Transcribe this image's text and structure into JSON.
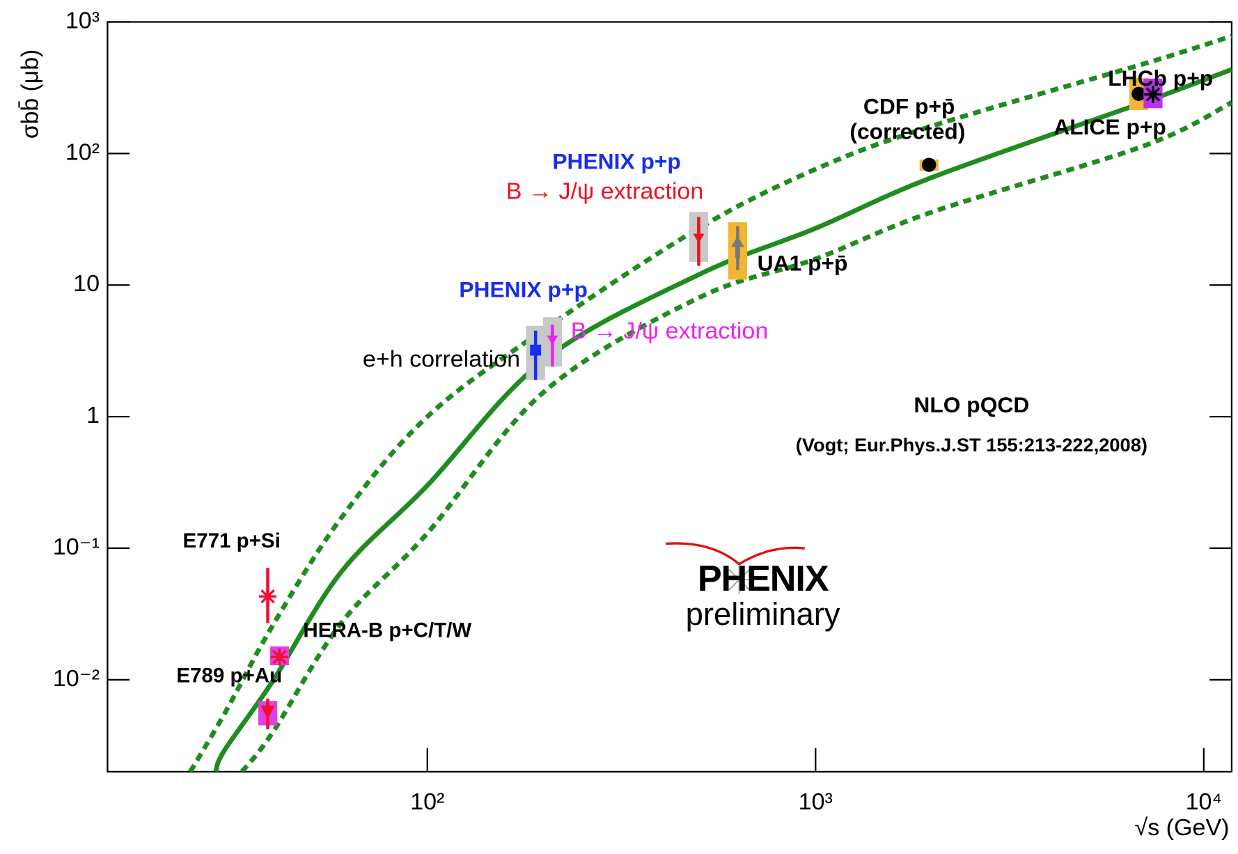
{
  "chart_data": {
    "type": "scatter",
    "xlabel": "√s (GeV)",
    "ylabel": "σbb̄ (μb)",
    "log_x": true,
    "log_y": true,
    "xlim": [
      15,
      11800
    ],
    "ylim": [
      0.002,
      1000
    ],
    "xticks": [
      {
        "value": 100,
        "label": "10²"
      },
      {
        "value": 1000,
        "label": "10³"
      },
      {
        "value": 10000,
        "label": "10⁴"
      }
    ],
    "yticks": [
      {
        "value": 0.01,
        "label": "10⁻²"
      },
      {
        "value": 0.1,
        "label": "10⁻¹"
      },
      1,
      10,
      {
        "value": 100,
        "label": "10²"
      },
      {
        "value": 1000,
        "label": "10³"
      }
    ],
    "curves": [
      {
        "style": "solid",
        "color": "#1e8c1e",
        "x": [
          28.5,
          30,
          40,
          60,
          100,
          200,
          500,
          1000,
          2000,
          7000,
          11800
        ],
        "values": [
          0.002,
          0.0029,
          0.0098,
          0.066,
          0.3,
          2.7,
          12,
          27,
          66,
          245,
          435
        ]
      },
      {
        "style": "dashed",
        "color": "#1e8c1e",
        "x": [
          24.5,
          30,
          40,
          60,
          100,
          200,
          500,
          1000,
          2000,
          7000,
          11800
        ],
        "values": [
          0.002,
          0.0055,
          0.026,
          0.17,
          1.0,
          4.6,
          27,
          76,
          162,
          480,
          780
        ]
      },
      {
        "style": "dashed",
        "color": "#1e8c1e",
        "x": [
          33.3,
          40,
          60,
          100,
          200,
          500,
          1000,
          2000,
          7000,
          11800
        ],
        "values": [
          0.002,
          0.004,
          0.027,
          0.13,
          1.55,
          8,
          15.8,
          36,
          114,
          244
        ]
      }
    ],
    "series": [
      {
        "color": "#ee1133",
        "marker": "star",
        "x": [
          38.8
        ],
        "values": [
          0.043
        ],
        "err_minus": [
          0.016
        ],
        "err_plus": [
          0.028
        ]
      },
      {
        "color": "#ee1133",
        "marker": "star",
        "box_color": "#e040e0",
        "x": [
          41.6
        ],
        "values": [
          0.0149
        ],
        "err_minus": [
          0.001
        ],
        "err_plus": [
          0.001
        ],
        "sys_minus": [
          0.002
        ],
        "sys_plus": [
          0.003
        ]
      },
      {
        "color": "#ee1133",
        "marker": "triangle-down",
        "box_color": "#e040e0",
        "x": [
          38.8
        ],
        "values": [
          0.0057
        ],
        "err_minus": [
          0.0015
        ],
        "err_plus": [
          0.0015
        ],
        "sys_minus": [
          0.0012
        ],
        "sys_plus": [
          0.0012
        ]
      },
      {
        "color": "#1133ee",
        "marker": "square",
        "box_color": "#c8c8c8",
        "x": [
          190
        ],
        "values": [
          3.2
        ],
        "err_minus": [
          1.3
        ],
        "err_plus": [
          1.3
        ],
        "sys_minus": [
          1.3
        ],
        "sys_plus": [
          1.7
        ]
      },
      {
        "color": "#ee22ee",
        "marker": "arrow-down",
        "box_color": "#c8c8c8",
        "x": [
          210
        ],
        "values": [
          3.7
        ],
        "err_minus": [
          1.3
        ],
        "err_plus": [
          1.3
        ],
        "sys_minus": [
          1.3
        ],
        "sys_plus": [
          2.0
        ]
      },
      {
        "color": "#ee1122",
        "marker": "arrow-down",
        "box_color": "#c8c8c8",
        "x": [
          500
        ],
        "values": [
          22
        ],
        "err_minus": [
          8
        ],
        "err_plus": [
          11
        ],
        "sys_minus": [
          7
        ],
        "sys_plus": [
          14
        ]
      },
      {
        "color": "#777777",
        "marker": "arrow-up",
        "box_color": "#f2b632",
        "x": [
          630
        ],
        "values": [
          19
        ],
        "err_minus": [
          6
        ],
        "err_plus": [
          9
        ],
        "sys_minus": [
          8
        ],
        "sys_plus": [
          11
        ]
      },
      {
        "color": "#000000",
        "marker": "circle",
        "box_color": "#f2b632",
        "x": [
          1960
        ],
        "values": [
          82
        ],
        "sys_minus": [
          8
        ],
        "sys_plus": [
          8
        ]
      },
      {
        "color": "#000000",
        "marker": "circle",
        "box_color": "#f2b632",
        "x": [
          6800
        ],
        "values": [
          284
        ],
        "sys_minus": [
          70
        ],
        "sys_plus": [
          90
        ]
      },
      {
        "color": "#000000",
        "marker": "star",
        "box_color": "#c030f0",
        "x": [
          7400
        ],
        "values": [
          281
        ],
        "sys_minus": [
          60
        ],
        "sys_plus": [
          90
        ]
      }
    ],
    "annotations": [
      {
        "text": "PHENIX p+p",
        "color": "#1a2ee8"
      },
      {
        "text": "B → J/ψ extraction",
        "color": "#ee1122"
      },
      {
        "text": "PHENIX p+p",
        "color": "#1a2ee8"
      },
      {
        "text": "B → J/ψ extraction",
        "color": "#ee22ee"
      },
      {
        "text": "e+h correlation",
        "color": "#000000"
      },
      {
        "text": "UA1 p+p̄",
        "color": "#000000"
      },
      {
        "text": "CDF p+p̄",
        "color": "#000000"
      },
      {
        "text": "(corrected)",
        "color": "#000000"
      },
      {
        "text": "LHCb p+p",
        "color": "#000000"
      },
      {
        "text": "ALICE p+p",
        "color": "#000000"
      },
      {
        "text": "NLO pQCD",
        "color": "#000000"
      },
      {
        "text": "(Vogt; Eur.Phys.J.ST 155:213-222,2008)",
        "color": "#000000"
      },
      {
        "text": "E771 p+Si",
        "color": "#000000"
      },
      {
        "text": "HERA-B p+C/T/W",
        "color": "#000000"
      },
      {
        "text": "E789 p+Au",
        "color": "#000000"
      }
    ],
    "logo": {
      "name": "PHENIX",
      "subtitle": "preliminary"
    }
  }
}
